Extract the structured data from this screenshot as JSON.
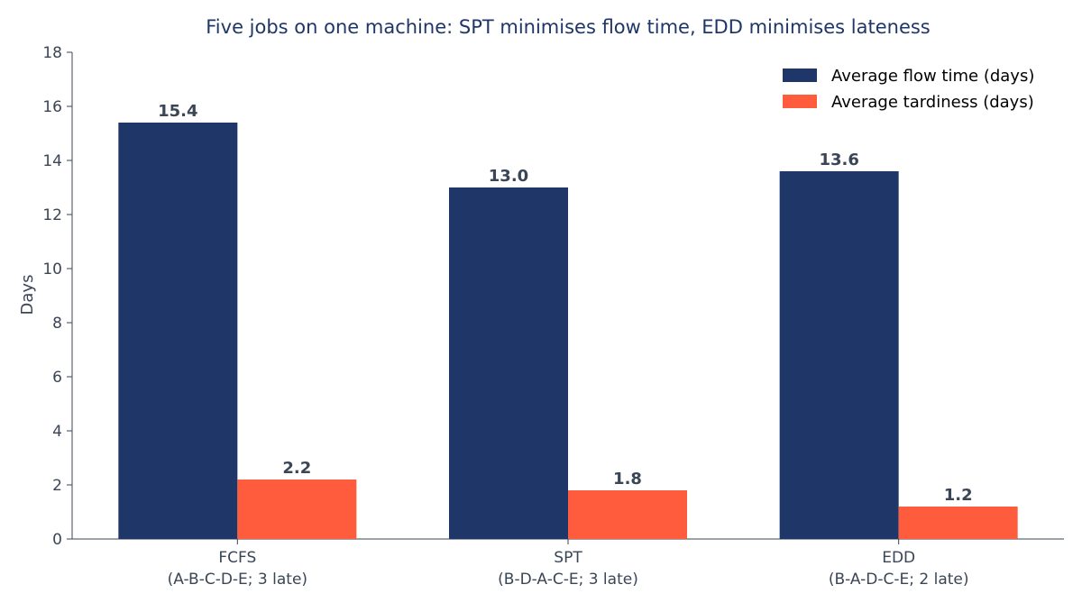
{
  "chart_data": {
    "type": "bar",
    "title": "Five jobs on one machine: SPT minimises flow time, EDD minimises lateness",
    "xlabel": "",
    "ylabel": "Days",
    "ylim": [
      0,
      18
    ],
    "yticks": [
      0,
      2,
      4,
      6,
      8,
      10,
      12,
      14,
      16,
      18
    ],
    "categories": [
      {
        "name": "FCFS",
        "sequence": "(A-B-C-D-E; 3 late)"
      },
      {
        "name": "SPT",
        "sequence": "(B-D-A-C-E; 3 late)"
      },
      {
        "name": "EDD",
        "sequence": "(B-A-D-C-E; 2 late)"
      }
    ],
    "series": [
      {
        "name": "Average flow time (days)",
        "color": "#1f3768",
        "values": [
          15.4,
          13.0,
          13.6
        ],
        "labels": [
          "15.4",
          "13.0",
          "13.6"
        ]
      },
      {
        "name": "Average tardiness (days)",
        "color": "#ff5b3d",
        "values": [
          2.2,
          1.8,
          1.2
        ],
        "labels": [
          "2.2",
          "1.8",
          "1.2"
        ]
      }
    ],
    "grid": false,
    "legend": "top-right"
  },
  "colors": {
    "title": "#1f3768",
    "text": "#3a4556",
    "axis": "#3a4556"
  }
}
